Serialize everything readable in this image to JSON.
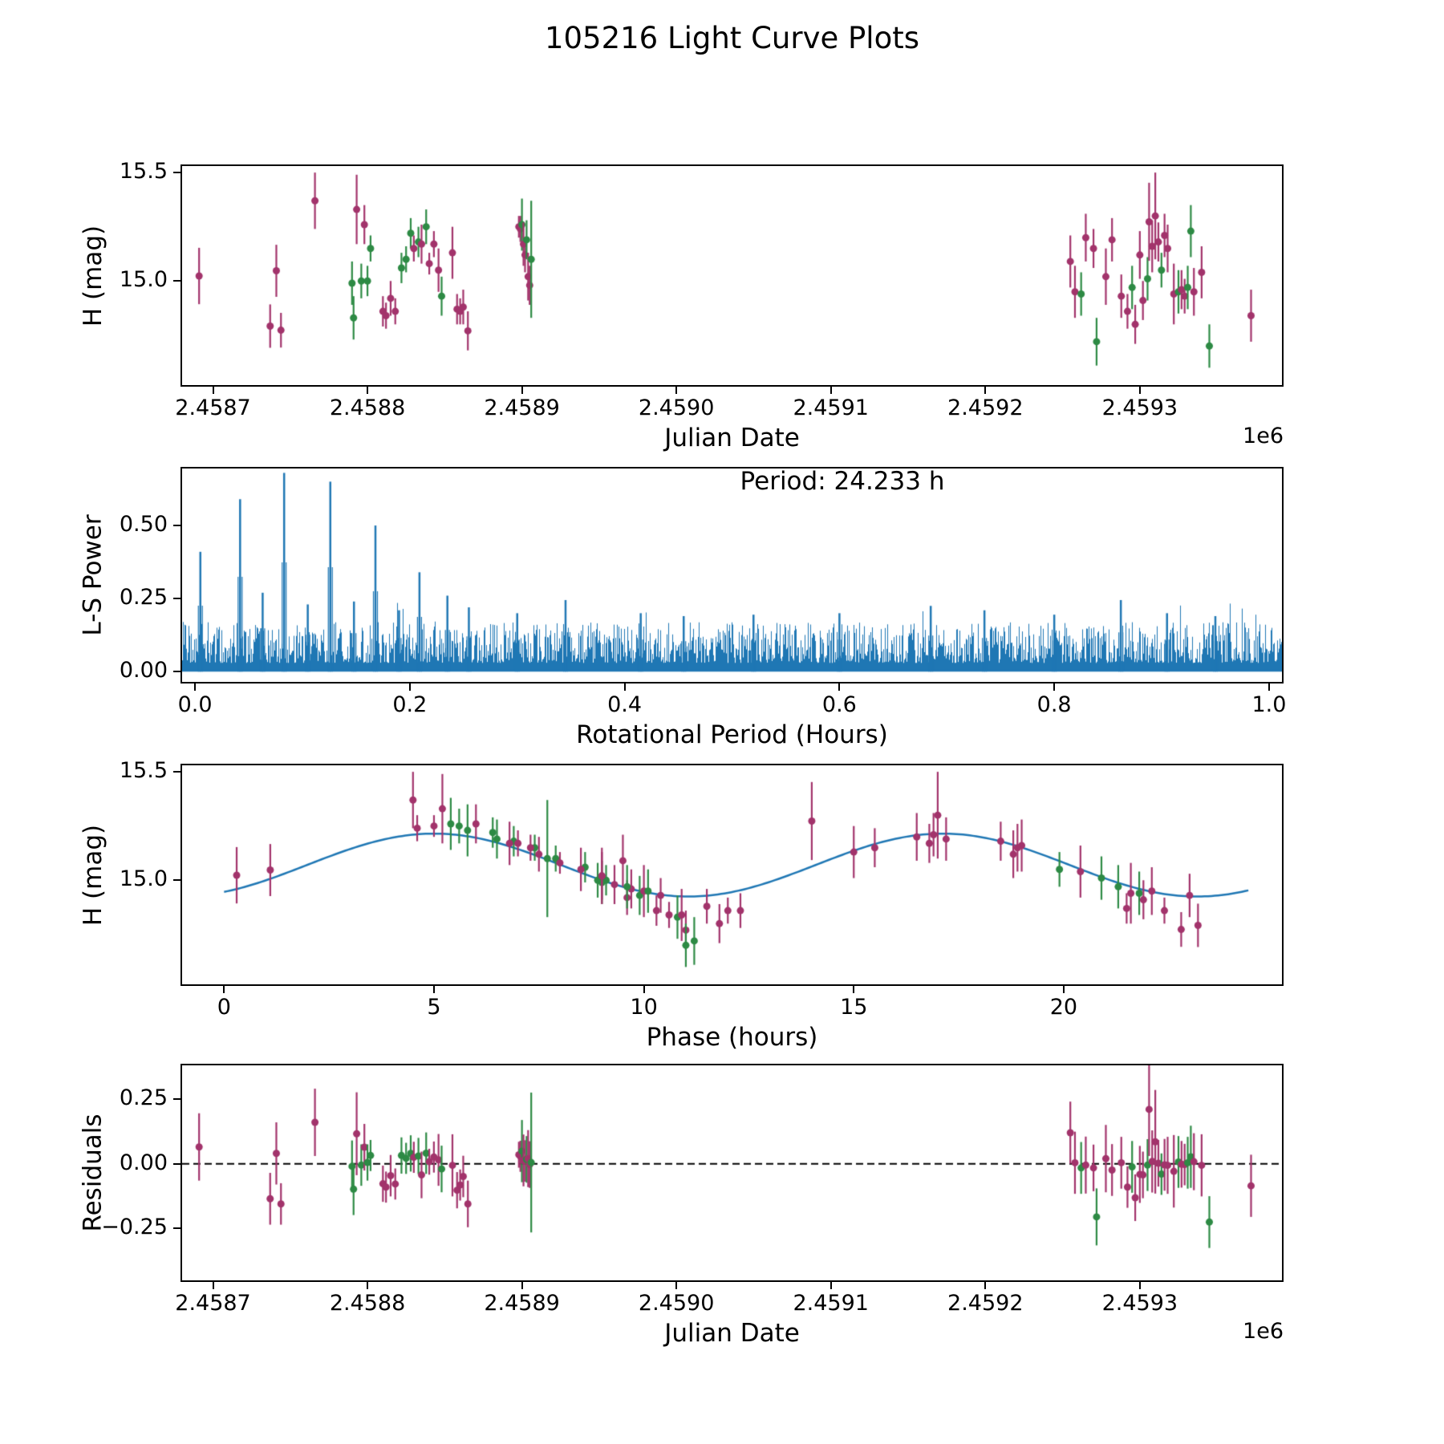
{
  "figure": {
    "title": "105216 Light Curve Plots",
    "colors": {
      "purple": "#a2336b",
      "green": "#2d8a44",
      "blue": "#1f77b4",
      "frame": "#000000",
      "background": "#ffffff"
    }
  },
  "chart_data": [
    {
      "type": "scatter",
      "name": "light_curve",
      "xlabel": "Julian Date",
      "ylabel": "H (mag)",
      "x_offset_text": "1e6",
      "y_inverted_magnitude_axis": true,
      "xlim": [
        2458680,
        2459392
      ],
      "ylim": [
        14.52,
        15.53
      ],
      "xticks": [
        {
          "v": 2458700,
          "l": "2.4587"
        },
        {
          "v": 2458800,
          "l": "2.4588"
        },
        {
          "v": 2458900,
          "l": "2.4589"
        },
        {
          "v": 2459000,
          "l": "2.4590"
        },
        {
          "v": 2459100,
          "l": "2.4591"
        },
        {
          "v": 2459200,
          "l": "2.4592"
        },
        {
          "v": 2459300,
          "l": "2.4593"
        }
      ],
      "yticks": [
        {
          "v": 15.5,
          "l": "15.5"
        },
        {
          "v": 15.0,
          "l": "15.0"
        }
      ],
      "series_key": "observations",
      "fields": {
        "x": 0,
        "y": 1,
        "err": 2
      }
    },
    {
      "type": "line",
      "name": "ls_periodogram",
      "xlabel": "Rotational Period (Hours)",
      "ylabel": "L-S Power",
      "annotation": "Period: 24.233 h",
      "period_hours": 24.233,
      "xlim": [
        -0.012,
        1.012
      ],
      "ylim": [
        -0.035,
        0.695
      ],
      "xticks": [
        {
          "v": 0.0,
          "l": "0.0"
        },
        {
          "v": 0.2,
          "l": "0.2"
        },
        {
          "v": 0.4,
          "l": "0.4"
        },
        {
          "v": 0.6,
          "l": "0.6"
        },
        {
          "v": 0.8,
          "l": "0.8"
        },
        {
          "v": 1.0,
          "l": "1.0"
        }
      ],
      "yticks": [
        {
          "v": 0.0,
          "l": "0.00"
        },
        {
          "v": 0.25,
          "l": "0.25"
        },
        {
          "v": 0.5,
          "l": "0.50"
        }
      ],
      "peaks": [
        [
          0.005,
          0.41
        ],
        [
          0.042,
          0.59
        ],
        [
          0.063,
          0.27
        ],
        [
          0.083,
          0.68
        ],
        [
          0.105,
          0.23
        ],
        [
          0.126,
          0.65
        ],
        [
          0.148,
          0.24
        ],
        [
          0.168,
          0.5
        ],
        [
          0.19,
          0.21
        ],
        [
          0.209,
          0.34
        ],
        [
          0.235,
          0.26
        ],
        [
          0.255,
          0.22
        ],
        [
          0.3,
          0.2
        ],
        [
          0.345,
          0.245
        ],
        [
          0.415,
          0.2
        ],
        [
          0.455,
          0.19
        ],
        [
          0.52,
          0.195
        ],
        [
          0.6,
          0.2
        ],
        [
          0.685,
          0.225
        ],
        [
          0.735,
          0.21
        ],
        [
          0.8,
          0.195
        ],
        [
          0.862,
          0.245
        ],
        [
          0.905,
          0.2
        ],
        [
          0.95,
          0.19
        ]
      ],
      "noise": {
        "base": 0.03,
        "spread": 0.14
      }
    },
    {
      "type": "scatter",
      "name": "phase_folded_curve",
      "xlabel": "Phase (hours)",
      "ylabel": "H (mag)",
      "y_inverted_magnitude_axis": true,
      "xlim": [
        -1.0,
        25.2
      ],
      "ylim": [
        14.52,
        15.53
      ],
      "xticks": [
        {
          "v": 0,
          "l": "0"
        },
        {
          "v": 5,
          "l": "5"
        },
        {
          "v": 10,
          "l": "10"
        },
        {
          "v": 15,
          "l": "15"
        },
        {
          "v": 20,
          "l": "20"
        }
      ],
      "yticks": [
        {
          "v": 15.5,
          "l": "15.5"
        },
        {
          "v": 15.0,
          "l": "15.0"
        }
      ],
      "series_key": "observations",
      "fields": {
        "x": 3,
        "y": 1,
        "err": 2
      },
      "fit": {
        "mean": 15.07,
        "amplitude": 0.145,
        "period_hours": 12.1165,
        "phase_of_max": 5.0,
        "x_range": [
          0,
          24.4
        ]
      }
    },
    {
      "type": "scatter",
      "name": "residuals",
      "xlabel": "Julian Date",
      "ylabel": "Residuals",
      "x_offset_text": "1e6",
      "xlim": [
        2458680,
        2459392
      ],
      "ylim": [
        -0.45,
        0.38
      ],
      "xticks": [
        {
          "v": 2458700,
          "l": "2.4587"
        },
        {
          "v": 2458800,
          "l": "2.4588"
        },
        {
          "v": 2458900,
          "l": "2.4589"
        },
        {
          "v": 2459000,
          "l": "2.4590"
        },
        {
          "v": 2459100,
          "l": "2.4591"
        },
        {
          "v": 2459200,
          "l": "2.4592"
        },
        {
          "v": 2459300,
          "l": "2.4593"
        }
      ],
      "yticks": [
        {
          "v": 0.25,
          "l": "0.25"
        },
        {
          "v": 0.0,
          "l": "0.00"
        },
        {
          "v": -0.25,
          "l": "−0.25"
        }
      ],
      "series_key": "observations",
      "fields": {
        "x": 0,
        "y": 4,
        "err": 2
      },
      "zero_line": true
    }
  ],
  "observations": {
    "columns": [
      "julian_date",
      "h_mag",
      "err",
      "phase_hours",
      "residual",
      "series"
    ],
    "series_legend": {
      "p": "purple",
      "g": "green"
    },
    "points": [
      [
        2458691,
        15.023,
        0.13,
        0.3,
        0.065,
        "p"
      ],
      [
        2458737,
        14.792,
        0.1,
        23.2,
        -0.135,
        "p"
      ],
      [
        2458741,
        15.047,
        0.12,
        1.1,
        0.04,
        "p"
      ],
      [
        2458744,
        14.773,
        0.08,
        22.8,
        -0.155,
        "p"
      ],
      [
        2458766,
        15.37,
        0.13,
        4.5,
        0.16,
        "p"
      ],
      [
        2458790,
        14.99,
        0.1,
        9.0,
        -0.01,
        "g"
      ],
      [
        2458791,
        14.83,
        0.1,
        10.8,
        -0.098,
        "g"
      ],
      [
        2458793,
        15.33,
        0.16,
        5.2,
        0.116,
        "p"
      ],
      [
        2458796,
        15.0,
        0.08,
        8.9,
        -0.005,
        "g"
      ],
      [
        2458798,
        15.26,
        0.09,
        6.0,
        0.064,
        "p"
      ],
      [
        2458800,
        15.0,
        0.07,
        9.1,
        0.005,
        "g"
      ],
      [
        2458802,
        15.15,
        0.06,
        7.4,
        0.032,
        "g"
      ],
      [
        2458810,
        14.86,
        0.07,
        10.3,
        -0.077,
        "p"
      ],
      [
        2458812,
        14.84,
        0.06,
        10.6,
        -0.09,
        "p"
      ],
      [
        2458815,
        14.92,
        0.08,
        9.6,
        -0.046,
        "p"
      ],
      [
        2458818,
        14.86,
        0.06,
        22.4,
        -0.078,
        "p"
      ],
      [
        2458822,
        15.06,
        0.07,
        8.6,
        0.032,
        "g"
      ],
      [
        2458825,
        15.1,
        0.06,
        7.9,
        0.021,
        "g"
      ],
      [
        2458828,
        15.22,
        0.07,
        6.4,
        0.04,
        "g"
      ],
      [
        2458830,
        15.15,
        0.06,
        7.3,
        0.025,
        "p"
      ],
      [
        2458833,
        15.18,
        0.07,
        6.9,
        0.03,
        "g"
      ],
      [
        2458835,
        15.17,
        0.09,
        16.8,
        -0.043,
        "p"
      ],
      [
        2458838,
        15.25,
        0.08,
        5.6,
        0.041,
        "g"
      ],
      [
        2458840,
        15.08,
        0.05,
        8.0,
        0.008,
        "p"
      ],
      [
        2458843,
        15.17,
        0.06,
        7.0,
        0.026,
        "p"
      ],
      [
        2458846,
        15.05,
        0.1,
        8.5,
        0.015,
        "p"
      ],
      [
        2458848,
        14.93,
        0.09,
        9.9,
        -0.02,
        "g"
      ],
      [
        2458855,
        15.13,
        0.12,
        15.0,
        -0.006,
        "p"
      ],
      [
        2458858,
        14.87,
        0.07,
        21.5,
        -0.102,
        "p"
      ],
      [
        2458860,
        14.86,
        0.06,
        12.0,
        -0.082,
        "p"
      ],
      [
        2458862,
        14.88,
        0.08,
        11.5,
        -0.049,
        "p"
      ],
      [
        2458865,
        14.77,
        0.09,
        11.0,
        -0.155,
        "p"
      ],
      [
        2458898,
        15.25,
        0.05,
        5.0,
        0.035,
        "p"
      ],
      [
        2458899,
        15.24,
        0.06,
        4.6,
        0.029,
        "p"
      ],
      [
        2458900,
        15.26,
        0.12,
        5.4,
        0.049,
        "g"
      ],
      [
        2458901,
        15.17,
        0.1,
        6.8,
        0.013,
        "p"
      ],
      [
        2458902,
        15.12,
        0.08,
        7.5,
        0.011,
        "p"
      ],
      [
        2458903,
        15.19,
        0.09,
        6.5,
        0.017,
        "g"
      ],
      [
        2458904,
        15.02,
        0.11,
        9.0,
        0.02,
        "p"
      ],
      [
        2458905,
        14.98,
        0.09,
        9.3,
        -0.003,
        "p"
      ],
      [
        2458906,
        15.1,
        0.27,
        7.7,
        0.005,
        "g"
      ],
      [
        2459255,
        15.09,
        0.12,
        9.5,
        0.12,
        "p"
      ],
      [
        2459258,
        14.95,
        0.12,
        10.0,
        0.004,
        "p"
      ],
      [
        2459262,
        14.94,
        0.1,
        21.8,
        -0.016,
        "g"
      ],
      [
        2459265,
        15.2,
        0.11,
        16.5,
        -0.005,
        "p"
      ],
      [
        2459270,
        15.15,
        0.09,
        15.5,
        -0.016,
        "p"
      ],
      [
        2459272,
        14.72,
        0.11,
        11.2,
        -0.205,
        "g"
      ],
      [
        2459278,
        15.02,
        0.13,
        9.0,
        0.02,
        "p"
      ],
      [
        2459282,
        15.19,
        0.1,
        17.2,
        -0.024,
        "p"
      ],
      [
        2459288,
        14.93,
        0.1,
        23.0,
        0.004,
        "p"
      ],
      [
        2459292,
        14.86,
        0.08,
        12.3,
        -0.09,
        "p"
      ],
      [
        2459295,
        14.97,
        0.1,
        21.3,
        -0.012,
        "g"
      ],
      [
        2459297,
        14.8,
        0.09,
        11.8,
        -0.131,
        "p"
      ],
      [
        2459300,
        15.12,
        0.11,
        18.8,
        -0.041,
        "p"
      ],
      [
        2459302,
        14.91,
        0.09,
        21.9,
        -0.043,
        "p"
      ],
      [
        2459305,
        15.01,
        0.1,
        20.9,
        -0.005,
        "g"
      ],
      [
        2459306,
        15.273,
        0.18,
        14.0,
        0.21,
        "p"
      ],
      [
        2459308,
        15.16,
        0.12,
        19.0,
        0.009,
        "p"
      ],
      [
        2459310,
        15.3,
        0.2,
        17.0,
        0.085,
        "p"
      ],
      [
        2459312,
        15.18,
        0.09,
        18.5,
        0.002,
        "p"
      ],
      [
        2459314,
        15.05,
        0.08,
        19.9,
        -0.04,
        "g"
      ],
      [
        2459316,
        15.21,
        0.1,
        16.9,
        -0.004,
        "p"
      ],
      [
        2459318,
        15.15,
        0.11,
        18.9,
        -0.006,
        "p"
      ],
      [
        2459322,
        14.94,
        0.14,
        21.6,
        -0.029,
        "p"
      ],
      [
        2459325,
        14.95,
        0.1,
        10.1,
        0.007,
        "g"
      ],
      [
        2459327,
        14.96,
        0.09,
        9.7,
        -0.002,
        "p"
      ],
      [
        2459329,
        14.93,
        0.08,
        10.4,
        -0.003,
        "p"
      ],
      [
        2459331,
        14.97,
        0.1,
        9.6,
        0.004,
        "g"
      ],
      [
        2459333,
        15.23,
        0.12,
        5.8,
        0.027,
        "g"
      ],
      [
        2459335,
        14.95,
        0.11,
        22.1,
        0.008,
        "p"
      ],
      [
        2459340,
        15.04,
        0.12,
        20.4,
        -0.006,
        "p"
      ],
      [
        2459345,
        14.7,
        0.1,
        11.0,
        -0.225,
        "g"
      ],
      [
        2459372,
        14.84,
        0.12,
        10.9,
        -0.085,
        "p"
      ]
    ]
  }
}
